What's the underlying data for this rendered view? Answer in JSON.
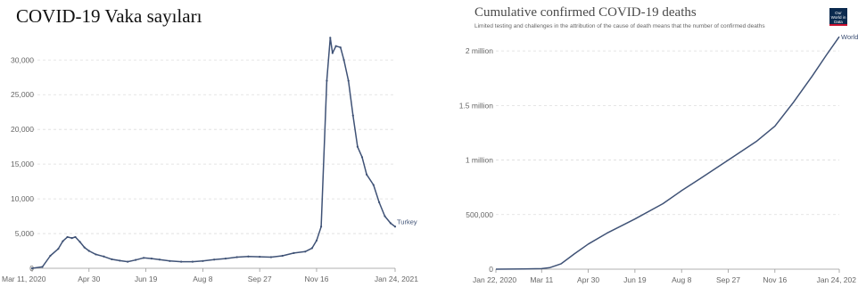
{
  "left_chart": {
    "title": "COVID-19 Vaka sayıları"
  },
  "right_chart": {
    "title": "Cumulative confirmed COVID-19 deaths",
    "subtitle": "Limited testing and challenges in the attribution of the cause of death means that the number of confirmed deaths",
    "logo_text": "Our World in Data"
  },
  "chart_data": [
    {
      "type": "line",
      "title": "COVID-19 Vaka sayıları",
      "xlabel": "",
      "ylabel": "",
      "x_tick_labels": [
        "Mar 11, 2020",
        "Apr 30",
        "Jun 19",
        "Aug 8",
        "Sep 27",
        "Nov 16",
        "Jan 24, 2021"
      ],
      "y_tick_labels": [
        "0",
        "5,000",
        "10,000",
        "15,000",
        "20,000",
        "25,000",
        "30,000"
      ],
      "y_ticks": [
        0,
        5000,
        10000,
        15000,
        20000,
        25000,
        30000
      ],
      "ylim": [
        0,
        33500
      ],
      "grid": true,
      "series": [
        {
          "name": "Turkey",
          "color": "#3f5276",
          "points": [
            [
              "2020-03-11",
              0
            ],
            [
              "2020-03-20",
              200
            ],
            [
              "2020-03-27",
              1800
            ],
            [
              "2020-04-03",
              2800
            ],
            [
              "2020-04-07",
              3900
            ],
            [
              "2020-04-11",
              4500
            ],
            [
              "2020-04-15",
              4350
            ],
            [
              "2020-04-18",
              4500
            ],
            [
              "2020-04-22",
              3800
            ],
            [
              "2020-04-26",
              3000
            ],
            [
              "2020-04-30",
              2500
            ],
            [
              "2020-05-06",
              2000
            ],
            [
              "2020-05-13",
              1700
            ],
            [
              "2020-05-20",
              1300
            ],
            [
              "2020-05-27",
              1100
            ],
            [
              "2020-06-03",
              950
            ],
            [
              "2020-06-10",
              1200
            ],
            [
              "2020-06-17",
              1500
            ],
            [
              "2020-06-24",
              1400
            ],
            [
              "2020-07-01",
              1250
            ],
            [
              "2020-07-10",
              1050
            ],
            [
              "2020-07-20",
              950
            ],
            [
              "2020-07-30",
              950
            ],
            [
              "2020-08-08",
              1050
            ],
            [
              "2020-08-18",
              1250
            ],
            [
              "2020-08-28",
              1400
            ],
            [
              "2020-09-07",
              1600
            ],
            [
              "2020-09-17",
              1700
            ],
            [
              "2020-09-27",
              1650
            ],
            [
              "2020-10-07",
              1600
            ],
            [
              "2020-10-17",
              1800
            ],
            [
              "2020-10-27",
              2200
            ],
            [
              "2020-11-06",
              2400
            ],
            [
              "2020-11-12",
              2900
            ],
            [
              "2020-11-16",
              4000
            ],
            [
              "2020-11-20",
              6000
            ],
            [
              "2020-11-25",
              27000
            ],
            [
              "2020-11-28",
              33200
            ],
            [
              "2020-11-30",
              31000
            ],
            [
              "2020-12-03",
              32000
            ],
            [
              "2020-12-07",
              31800
            ],
            [
              "2020-12-10",
              30000
            ],
            [
              "2020-12-14",
              27000
            ],
            [
              "2020-12-18",
              22000
            ],
            [
              "2020-12-22",
              17500
            ],
            [
              "2020-12-26",
              16000
            ],
            [
              "2020-12-30",
              13500
            ],
            [
              "2021-01-05",
              12000
            ],
            [
              "2021-01-10",
              9500
            ],
            [
              "2021-01-15",
              7500
            ],
            [
              "2021-01-20",
              6500
            ],
            [
              "2021-01-24",
              6000
            ]
          ],
          "end_label": "Turkey"
        }
      ]
    },
    {
      "type": "line",
      "title": "Cumulative confirmed COVID-19 deaths",
      "subtitle": "Limited testing and challenges in the attribution of the cause of death means that the number of confirmed deaths",
      "xlabel": "",
      "ylabel": "",
      "x_tick_labels": [
        "Jan 22, 2020",
        "Mar 11",
        "Apr 30",
        "Jun 19",
        "Aug 8",
        "Sep 27",
        "Nov 16",
        "Jan 24, 202"
      ],
      "y_tick_labels": [
        "0",
        "500,000",
        "1 million",
        "1.5 million",
        "2 million"
      ],
      "y_ticks": [
        0,
        500000,
        1000000,
        1500000,
        2000000
      ],
      "ylim": [
        0,
        2140000
      ],
      "grid": true,
      "series": [
        {
          "name": "World",
          "color": "#3f5276",
          "points": [
            [
              "2020-01-22",
              0
            ],
            [
              "2020-02-20",
              2200
            ],
            [
              "2020-03-11",
              5000
            ],
            [
              "2020-03-20",
              15000
            ],
            [
              "2020-04-01",
              50000
            ],
            [
              "2020-04-15",
              140000
            ],
            [
              "2020-04-30",
              230000
            ],
            [
              "2020-05-20",
              330000
            ],
            [
              "2020-06-19",
              460000
            ],
            [
              "2020-07-19",
              600000
            ],
            [
              "2020-08-08",
              720000
            ],
            [
              "2020-08-28",
              830000
            ],
            [
              "2020-09-27",
              1000000
            ],
            [
              "2020-10-27",
              1170000
            ],
            [
              "2020-11-16",
              1310000
            ],
            [
              "2020-12-06",
              1530000
            ],
            [
              "2020-12-26",
              1770000
            ],
            [
              "2021-01-10",
              1960000
            ],
            [
              "2021-01-24",
              2130000
            ]
          ],
          "end_label": "World"
        }
      ]
    }
  ]
}
